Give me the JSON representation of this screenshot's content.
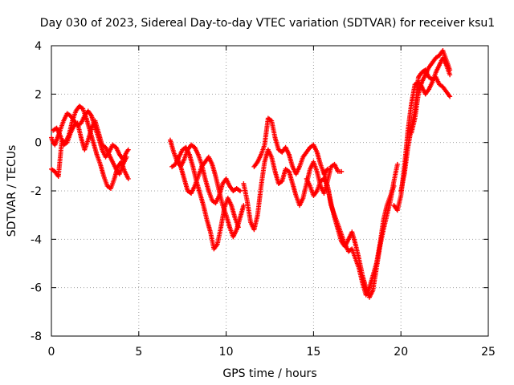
{
  "chart_data": {
    "type": "scatter",
    "title": "Day 030 of 2023, Sidereal Day-to-day VTEC variation (SDTVAR) for receiver ksu1",
    "xlabel": "GPS time / hours",
    "ylabel": "SDTVAR / TECUs",
    "xlim": [
      0,
      25
    ],
    "ylim": [
      -8,
      4
    ],
    "xticks": [
      0,
      5,
      10,
      15,
      20,
      25
    ],
    "yticks": [
      -8,
      -6,
      -4,
      -2,
      0,
      2,
      4
    ],
    "xtick_labels": [
      "0",
      "5",
      "10",
      "15",
      "20",
      "25"
    ],
    "ytick_labels": [
      "-8",
      "-6",
      "-4",
      "-2",
      "0",
      "2",
      "4"
    ],
    "grid": true,
    "marker": "+",
    "color": "#ff0000",
    "series": [
      {
        "name": "s1",
        "x": [
          0.0,
          0.1,
          0.2,
          0.35,
          0.5,
          0.7,
          0.9,
          1.1,
          1.3,
          1.5,
          1.7,
          1.9,
          2.1,
          2.3,
          2.5,
          2.7,
          2.9,
          3.1,
          3.3,
          3.5,
          3.7,
          3.9,
          4.1,
          4.3,
          4.4
        ],
        "y": [
          0.2,
          0.0,
          -0.1,
          0.2,
          0.5,
          0.9,
          1.2,
          1.1,
          0.9,
          0.7,
          0.8,
          1.1,
          1.3,
          1.1,
          0.6,
          0.2,
          -0.3,
          -0.6,
          -0.4,
          -0.1,
          -0.2,
          -0.5,
          -0.7,
          -0.4,
          -0.3
        ]
      },
      {
        "name": "s2",
        "x": [
          0.0,
          0.2,
          0.4,
          0.6,
          0.8,
          1.0,
          1.2,
          1.4,
          1.6,
          1.8,
          2.0,
          2.2,
          2.4,
          2.6,
          2.8,
          3.0,
          3.2,
          3.4,
          3.6,
          3.8,
          4.0,
          4.2,
          4.4
        ],
        "y": [
          -1.1,
          -1.2,
          -1.4,
          0.1,
          0.0,
          0.3,
          0.9,
          1.3,
          1.5,
          1.4,
          1.0,
          0.5,
          0.0,
          -0.5,
          -0.9,
          -1.4,
          -1.8,
          -1.9,
          -1.5,
          -1.0,
          -0.8,
          -1.2,
          -1.5
        ]
      },
      {
        "name": "s3",
        "x": [
          0.1,
          0.3,
          0.5,
          0.7,
          0.9,
          1.1,
          1.3,
          1.5,
          1.7,
          1.9,
          2.1,
          2.3,
          2.5,
          2.7,
          2.9,
          3.1,
          3.3,
          3.5,
          3.7,
          3.9,
          4.1,
          4.3
        ],
        "y": [
          0.5,
          0.6,
          0.3,
          -0.1,
          0.0,
          0.4,
          0.7,
          0.8,
          0.2,
          -0.3,
          0.1,
          0.6,
          0.9,
          0.4,
          -0.1,
          -0.2,
          -0.5,
          -0.8,
          -1.1,
          -1.3,
          -0.9,
          -0.6
        ]
      },
      {
        "name": "s4",
        "x": [
          6.8,
          7.0,
          7.2,
          7.4,
          7.6,
          7.8,
          8.0,
          8.2,
          8.4,
          8.6,
          8.8,
          9.0,
          9.2,
          9.4,
          9.6,
          9.8,
          10.0,
          10.2,
          10.4,
          10.6,
          10.8
        ],
        "y": [
          0.1,
          -0.4,
          -0.8,
          -1.0,
          -0.7,
          -0.3,
          -0.1,
          -0.2,
          -0.5,
          -0.9,
          -1.5,
          -2.0,
          -2.4,
          -2.5,
          -2.2,
          -1.7,
          -1.5,
          -1.8,
          -2.0,
          -1.9,
          -2.0
        ]
      },
      {
        "name": "s5",
        "x": [
          6.9,
          7.1,
          7.3,
          7.5,
          7.7,
          7.9,
          8.1,
          8.3,
          8.5,
          8.7,
          8.9,
          9.1,
          9.3,
          9.5,
          9.7,
          9.9,
          10.1,
          10.3,
          10.5,
          10.7
        ],
        "y": [
          -1.0,
          -0.9,
          -0.6,
          -0.3,
          -0.2,
          -0.5,
          -1.0,
          -1.6,
          -2.1,
          -2.6,
          -3.2,
          -3.7,
          -4.4,
          -4.2,
          -3.5,
          -2.7,
          -2.3,
          -2.6,
          -3.1,
          -3.5
        ]
      },
      {
        "name": "s6",
        "x": [
          7.2,
          7.4,
          7.6,
          7.8,
          8.0,
          8.2,
          8.4,
          8.6,
          8.8,
          9.0,
          9.2,
          9.4,
          9.6,
          9.8,
          10.0,
          10.2,
          10.4,
          10.6,
          10.8,
          11.0
        ],
        "y": [
          -0.6,
          -1.0,
          -1.5,
          -2.0,
          -2.1,
          -1.8,
          -1.4,
          -1.0,
          -0.8,
          -0.6,
          -0.9,
          -1.4,
          -2.0,
          -2.6,
          -3.0,
          -3.5,
          -3.9,
          -3.6,
          -3.1,
          -2.6
        ]
      },
      {
        "name": "s7",
        "x": [
          11.0,
          11.2,
          11.4,
          11.6,
          11.8,
          12.0,
          12.2,
          12.4,
          12.6,
          12.8,
          13.0,
          13.2,
          13.4,
          13.6,
          13.8,
          14.0,
          14.2,
          14.4,
          14.6,
          14.8,
          15.0,
          15.2,
          15.4,
          15.6,
          15.8,
          16.0,
          16.2,
          16.4,
          16.6
        ],
        "y": [
          -1.7,
          -2.4,
          -3.3,
          -3.6,
          -3.0,
          -1.8,
          -0.8,
          -0.3,
          -0.6,
          -1.2,
          -1.7,
          -1.6,
          -1.1,
          -1.2,
          -1.7,
          -2.2,
          -2.6,
          -2.3,
          -1.7,
          -1.1,
          -0.8,
          -1.2,
          -1.8,
          -2.1,
          -1.6,
          -1.0,
          -0.9,
          -1.2,
          -1.2
        ]
      },
      {
        "name": "s8",
        "x": [
          11.6,
          11.8,
          12.0,
          12.2,
          12.4,
          12.6,
          12.8,
          13.0,
          13.2,
          13.4,
          13.6,
          13.8,
          14.0,
          14.2,
          14.4,
          14.6,
          14.8,
          15.0,
          15.2,
          15.4,
          15.6,
          15.8
        ],
        "y": [
          -1.0,
          -0.8,
          -0.5,
          -0.1,
          1.0,
          0.9,
          0.2,
          -0.3,
          -0.4,
          -0.2,
          -0.5,
          -1.0,
          -1.3,
          -1.0,
          -0.6,
          -0.4,
          -0.2,
          -0.1,
          -0.4,
          -0.9,
          -1.3,
          -1.1
        ]
      },
      {
        "name": "s9",
        "x": [
          14.6,
          14.8,
          15.0,
          15.2,
          15.4,
          15.6,
          15.8,
          16.0,
          16.2,
          16.4,
          16.6,
          16.8,
          17.0,
          17.2,
          17.4,
          17.6,
          17.8,
          18.0,
          18.2,
          18.4,
          18.6,
          18.8,
          19.0,
          19.2,
          19.4,
          19.6,
          19.8
        ],
        "y": [
          -1.5,
          -1.8,
          -2.2,
          -2.0,
          -1.6,
          -1.5,
          -1.8,
          -2.5,
          -3.1,
          -3.6,
          -4.1,
          -4.3,
          -4.0,
          -3.7,
          -4.2,
          -4.8,
          -5.5,
          -6.0,
          -6.4,
          -6.1,
          -5.2,
          -4.3,
          -3.6,
          -3.0,
          -2.4,
          -1.6,
          -0.9
        ]
      },
      {
        "name": "s10",
        "x": [
          15.6,
          15.8,
          16.0,
          16.2,
          16.4,
          16.6,
          16.8,
          17.0,
          17.2,
          17.4,
          17.6,
          17.8,
          18.0,
          18.2,
          18.4,
          18.6,
          18.8,
          19.0,
          19.2,
          19.4,
          19.6
        ],
        "y": [
          -1.2,
          -1.8,
          -2.6,
          -3.0,
          -3.4,
          -3.8,
          -4.2,
          -4.5,
          -4.4,
          -4.8,
          -5.2,
          -5.8,
          -6.3,
          -6.0,
          -5.5,
          -5.0,
          -4.2,
          -3.2,
          -2.6,
          -2.2,
          -1.8
        ]
      },
      {
        "name": "s11",
        "x": [
          19.6,
          19.8,
          20.0,
          20.2,
          20.4,
          20.6,
          20.8,
          21.0,
          21.2,
          21.4,
          21.6,
          21.8,
          22.0,
          22.2,
          22.4,
          22.6,
          22.8
        ],
        "y": [
          -2.6,
          -2.8,
          -2.2,
          -1.0,
          0.5,
          1.6,
          2.4,
          2.5,
          2.3,
          2.0,
          2.2,
          2.5,
          2.9,
          3.2,
          3.5,
          3.2,
          2.8
        ]
      },
      {
        "name": "s12",
        "x": [
          20.0,
          20.2,
          20.4,
          20.6,
          20.8,
          21.0,
          21.2,
          21.4,
          21.6,
          21.8,
          22.0,
          22.2,
          22.4,
          22.6,
          22.8
        ],
        "y": [
          -2.0,
          -1.3,
          -0.2,
          0.6,
          1.3,
          2.7,
          2.9,
          3.0,
          2.7,
          2.6,
          2.7,
          2.4,
          2.3,
          2.1,
          1.9
        ]
      },
      {
        "name": "s13",
        "x": [
          20.6,
          20.8,
          21.0,
          21.2,
          21.4,
          21.6,
          21.8,
          22.0,
          22.2,
          22.4,
          22.6,
          22.8
        ],
        "y": [
          0.4,
          1.0,
          2.0,
          2.5,
          2.8,
          3.1,
          3.3,
          3.5,
          3.6,
          3.8,
          3.4,
          3.0
        ]
      }
    ]
  }
}
